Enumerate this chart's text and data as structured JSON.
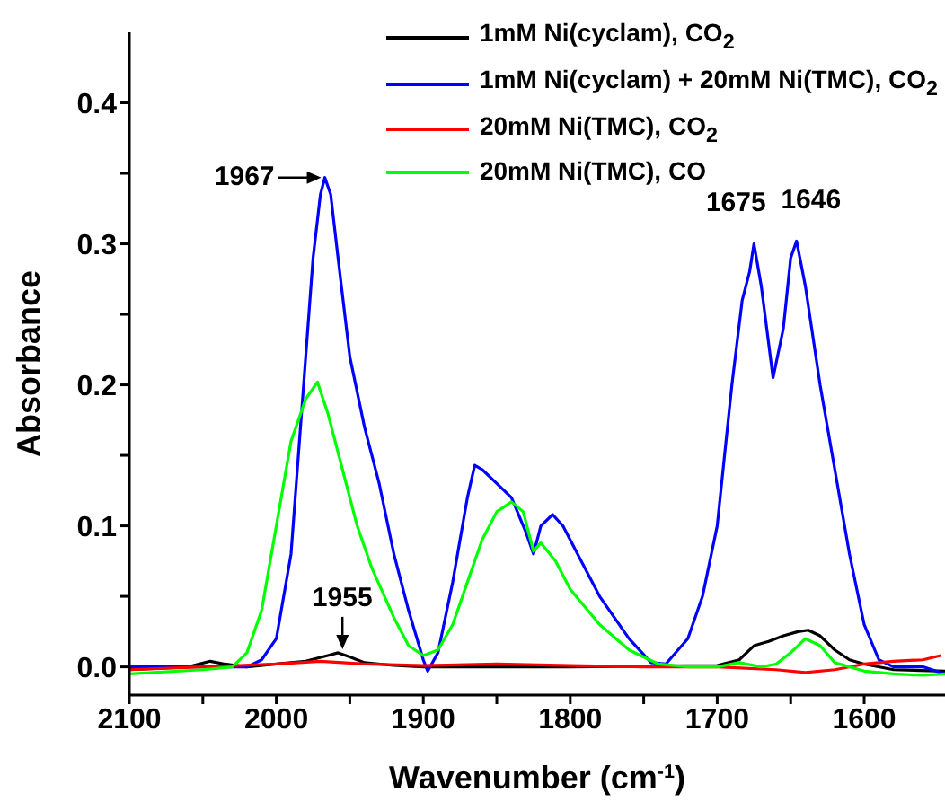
{
  "chart_data": {
    "type": "line",
    "xlabel": "Wavenumber (cm$^{-1}$)",
    "ylabel": "Absorbance",
    "xlim": [
      2100,
      1545
    ],
    "ylim": [
      -0.02,
      0.45
    ],
    "xticks": [
      2100,
      {
        "value": 2050,
        "label": null
      },
      2000,
      {
        "value": 1950,
        "label": null
      },
      1900,
      {
        "value": 1850,
        "label": null
      },
      1800,
      {
        "value": 1750,
        "label": null
      },
      1700,
      {
        "value": 1650,
        "label": null
      },
      1600
    ],
    "yticks": [
      {
        "value": 0,
        "label": "0.0"
      },
      {
        "value": 0.05,
        "label": null
      },
      0.1,
      {
        "value": 0.15,
        "label": null
      },
      0.2,
      {
        "value": 0.25,
        "label": null
      },
      0.3,
      {
        "value": 0.35,
        "label": null
      },
      0.4
    ],
    "grid": false,
    "legend": "top right",
    "marker": "none",
    "line_style": "solid",
    "series": [
      {
        "name": "1mM Ni(cyclam), CO$_{2}$",
        "color": "#000000",
        "x": [
          2100,
          2060,
          2045,
          2035,
          2020,
          2000,
          1980,
          1965,
          1958,
          1950,
          1940,
          1920,
          1900,
          1800,
          1700,
          1685,
          1675,
          1665,
          1655,
          1645,
          1638,
          1630,
          1620,
          1610,
          1600,
          1580,
          1545
        ],
        "values": [
          -0.002,
          0,
          0.004,
          0.002,
          0,
          0.002,
          0.004,
          0.008,
          0.01,
          0.007,
          0.003,
          0.001,
          0,
          0,
          0.001,
          0.005,
          0.015,
          0.018,
          0.022,
          0.025,
          0.026,
          0.022,
          0.012,
          0.005,
          0.002,
          -0.002,
          -0.003
        ]
      },
      {
        "name": "1mM Ni(cyclam) + 20mM Ni(TMC), CO$_{2}$",
        "color": "#0000ff",
        "x": [
          2100,
          2050,
          2020,
          2010,
          2000,
          1990,
          1985,
          1980,
          1975,
          1970,
          1967,
          1963,
          1958,
          1950,
          1940,
          1930,
          1920,
          1910,
          1900,
          1897,
          1890,
          1880,
          1870,
          1865,
          1860,
          1850,
          1840,
          1830,
          1825,
          1820,
          1812,
          1805,
          1795,
          1780,
          1760,
          1745,
          1735,
          1720,
          1710,
          1700,
          1690,
          1683,
          1678,
          1675,
          1670,
          1662,
          1655,
          1650,
          1646,
          1640,
          1630,
          1620,
          1610,
          1600,
          1590,
          1580,
          1560,
          1545
        ],
        "values": [
          0,
          0,
          0,
          0.005,
          0.02,
          0.08,
          0.15,
          0.22,
          0.29,
          0.335,
          0.347,
          0.335,
          0.29,
          0.22,
          0.17,
          0.13,
          0.08,
          0.04,
          0.005,
          -0.003,
          0.01,
          0.06,
          0.12,
          0.143,
          0.14,
          0.13,
          0.12,
          0.095,
          0.08,
          0.1,
          0.108,
          0.1,
          0.08,
          0.05,
          0.02,
          0.003,
          0.002,
          0.02,
          0.05,
          0.1,
          0.2,
          0.26,
          0.28,
          0.3,
          0.27,
          0.205,
          0.24,
          0.29,
          0.302,
          0.27,
          0.2,
          0.14,
          0.08,
          0.03,
          0.005,
          0,
          0,
          -0.005
        ]
      },
      {
        "name": "20mM Ni(TMC), CO$_{2}$",
        "color": "#ff0000",
        "x": [
          2100,
          2050,
          2000,
          1970,
          1940,
          1900,
          1850,
          1800,
          1750,
          1700,
          1660,
          1640,
          1620,
          1600,
          1580,
          1560,
          1548
        ],
        "values": [
          -0.002,
          0,
          0.002,
          0.004,
          0.002,
          0.001,
          0.002,
          0.001,
          0,
          0,
          -0.002,
          -0.004,
          -0.002,
          0.002,
          0.004,
          0.005,
          0.008
        ]
      },
      {
        "name": "20mM Ni(TMC), CO",
        "color": "#00ff00",
        "x": [
          2100,
          2050,
          2030,
          2020,
          2010,
          2000,
          1990,
          1980,
          1972,
          1965,
          1955,
          1945,
          1935,
          1920,
          1910,
          1900,
          1890,
          1880,
          1870,
          1860,
          1850,
          1840,
          1832,
          1825,
          1820,
          1810,
          1800,
          1780,
          1760,
          1740,
          1720,
          1700,
          1685,
          1670,
          1660,
          1650,
          1640,
          1630,
          1620,
          1600,
          1580,
          1560,
          1545
        ],
        "values": [
          -0.005,
          -0.002,
          0,
          0.01,
          0.04,
          0.1,
          0.16,
          0.19,
          0.202,
          0.18,
          0.14,
          0.1,
          0.07,
          0.035,
          0.015,
          0.008,
          0.012,
          0.03,
          0.06,
          0.09,
          0.11,
          0.117,
          0.11,
          0.082,
          0.088,
          0.075,
          0.055,
          0.03,
          0.012,
          0.002,
          0,
          0,
          0.003,
          0,
          0.002,
          0.01,
          0.02,
          0.015,
          0.003,
          -0.003,
          -0.005,
          -0.006,
          -0.005
        ]
      }
    ],
    "annotations": [
      {
        "text": "1967",
        "x": 1967,
        "y": 0.347
      },
      {
        "text": "1955",
        "x": 1955,
        "y": 0.01
      },
      {
        "text": "1675",
        "x": 1675,
        "y": 0.3
      },
      {
        "text": "1646",
        "x": 1646,
        "y": 0.302
      }
    ]
  }
}
